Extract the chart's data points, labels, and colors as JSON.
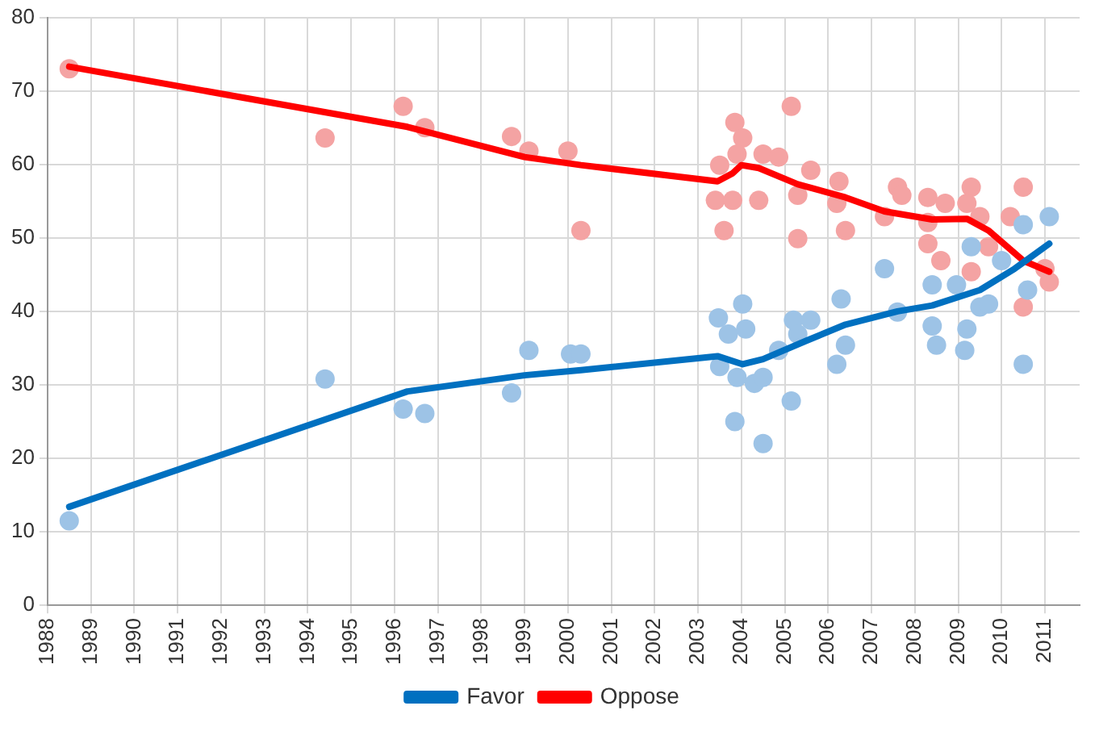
{
  "chart_data": {
    "type": "scatter",
    "xlim": [
      1988,
      2011.8
    ],
    "xticks": [
      1988,
      1989,
      1990,
      1991,
      1992,
      1993,
      1994,
      1995,
      1996,
      1997,
      1998,
      1999,
      2000,
      2001,
      2002,
      2003,
      2004,
      2005,
      2006,
      2007,
      2008,
      2009,
      2010,
      2011
    ],
    "ylim": [
      0,
      80
    ],
    "yticks": [
      0,
      10,
      20,
      30,
      40,
      50,
      60,
      70,
      80
    ],
    "grid": true,
    "legend": "bottom",
    "line_style": "solid",
    "series": [
      {
        "marker": "circle",
        "color": "#9dc3e6",
        "x": [
          1988.5,
          1994.4,
          1996.2,
          1996.7,
          1998.7,
          1999.1,
          2000.06,
          2000.3,
          2003.47,
          2004.03,
          2003.7,
          2004.1,
          2003.5,
          2003.9,
          2004.3,
          2004.5,
          2003.85,
          2004.5,
          2004.86,
          2005.15,
          2005.2,
          2005.6,
          2005.3,
          2006.3,
          2006.4,
          2006.2,
          2007.3,
          2007.6,
          2008.4,
          2008.4,
          2008.5,
          2008.96,
          2009.3,
          2009.5,
          2009.15,
          2009.2,
          2009.7,
          2010.0,
          2010.5,
          2010.6,
          2010.5,
          2011.1
        ],
        "values": [
          11.5,
          30.8,
          26.7,
          26.1,
          28.9,
          34.7,
          34.2,
          34.2,
          39.1,
          41.0,
          36.9,
          37.6,
          32.5,
          31.0,
          30.2,
          31.0,
          25.0,
          22.0,
          34.7,
          27.8,
          38.8,
          38.8,
          36.9,
          41.7,
          35.4,
          32.8,
          45.8,
          39.9,
          43.6,
          38.0,
          35.4,
          43.6,
          48.8,
          40.6,
          34.7,
          37.6,
          41.0,
          46.9,
          51.8,
          42.9,
          32.8,
          52.9
        ]
      },
      {
        "marker": "circle",
        "color": "#f4a3a3",
        "x": [
          1988.5,
          1994.4,
          1996.2,
          1996.7,
          1998.7,
          1999.1,
          2000.0,
          2000.3,
          2003.85,
          2004.03,
          2003.5,
          2003.9,
          2004.5,
          2004.86,
          2003.4,
          2003.8,
          2004.4,
          2003.6,
          2005.15,
          2005.3,
          2005.3,
          2005.6,
          2006.25,
          2006.2,
          2006.4,
          2007.3,
          2007.6,
          2007.7,
          2008.3,
          2008.3,
          2008.3,
          2008.6,
          2008.7,
          2009.3,
          2009.2,
          2009.5,
          2009.3,
          2009.7,
          2010.2,
          2010.5,
          2010.5,
          2011.1,
          2011.0
        ],
        "values": [
          73.0,
          63.6,
          67.9,
          65.0,
          63.8,
          61.8,
          61.8,
          51.0,
          65.7,
          63.6,
          59.9,
          61.4,
          61.4,
          61.0,
          55.1,
          55.1,
          55.1,
          51.0,
          67.9,
          55.8,
          49.9,
          59.2,
          57.7,
          54.7,
          51.0,
          52.9,
          56.9,
          55.8,
          55.5,
          52.1,
          49.2,
          46.9,
          54.7,
          56.9,
          54.7,
          52.9,
          45.4,
          48.8,
          52.9,
          56.9,
          40.6,
          44.0,
          45.8
        ]
      },
      {
        "type": "line",
        "marker": "none",
        "name": "Favor",
        "color": "#0070c0",
        "x": [
          1988.5,
          1996.3,
          1999.0,
          2000.3,
          2003.45,
          2004.03,
          2004.5,
          2005.5,
          2006.4,
          2007.6,
          2008.4,
          2009.5,
          2010.3,
          2011.1
        ],
        "values": [
          13.4,
          29.1,
          31.3,
          32.0,
          33.9,
          32.8,
          33.5,
          36.0,
          38.2,
          40.0,
          40.8,
          42.9,
          45.8,
          49.2
        ]
      },
      {
        "type": "line",
        "marker": "none",
        "name": "Oppose",
        "color": "#ff0000",
        "x": [
          1988.5,
          1996.3,
          1999.0,
          2000.3,
          2003.45,
          2003.8,
          2004.0,
          2004.4,
          2005.3,
          2006.4,
          2007.3,
          2008.4,
          2009.2,
          2009.7,
          2010.5,
          2011.1
        ],
        "values": [
          73.3,
          65.1,
          61.0,
          59.9,
          57.7,
          58.8,
          59.9,
          59.5,
          57.3,
          55.5,
          53.6,
          52.5,
          52.6,
          51.0,
          46.9,
          45.4
        ]
      }
    ]
  }
}
